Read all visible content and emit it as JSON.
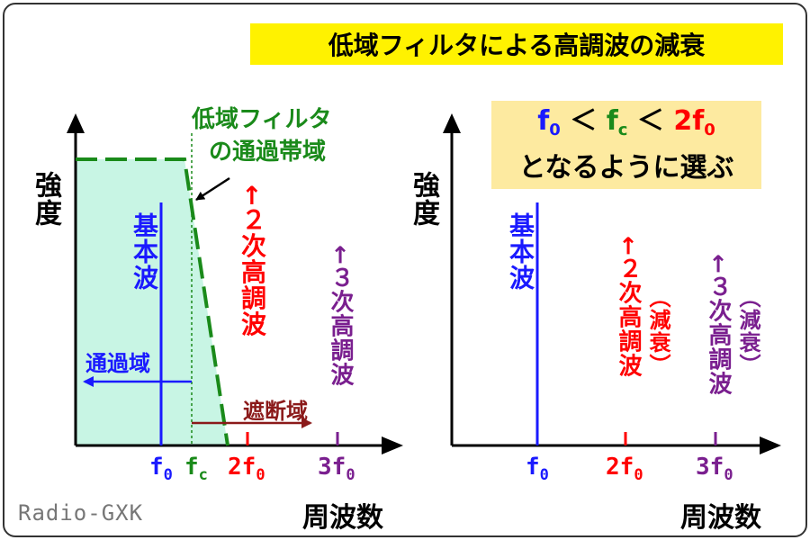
{
  "title": "低域フィルタによる高調波の減衰",
  "note": {
    "line1_f0": "f",
    "line1_f0_sub": "0",
    "line1_lt1": "＜",
    "line1_fc": "f",
    "line1_fc_sub": "c",
    "line1_lt2": "＜",
    "line1_2f0": "2f",
    "line1_2f0_sub": "0",
    "line2": "となるように選ぶ"
  },
  "left_chart": {
    "ylabel": "強度",
    "xlabel": "周波数",
    "filter_label_line1": "低域フィルタ",
    "filter_label_line2": "の通過帯域",
    "fundamental": "基本波",
    "second_harmonic": "←２次高調波",
    "third_harmonic": "←３次高調波",
    "passband": "通過域",
    "stopband": "遮断域",
    "ticks": {
      "f0": "f",
      "f0_sub": "0",
      "fc": "f",
      "fc_sub": "c",
      "f2": "2f",
      "f2_sub": "0",
      "f3": "3f",
      "f3_sub": "0"
    }
  },
  "right_chart": {
    "ylabel": "強度",
    "xlabel": "周波数",
    "fundamental": "基本波",
    "second_harmonic": "←２次高調波",
    "second_note": "（減衰）",
    "third_harmonic": "←３次高調波",
    "third_note": "（減衰）",
    "ticks": {
      "f0": "f",
      "f0_sub": "0",
      "f2": "2f",
      "f2_sub": "0",
      "f3": "3f",
      "f3_sub": "0"
    }
  },
  "watermark": "Radio-GXK",
  "colors": {
    "fundamental": "#1a1aff",
    "second": "#ff0000",
    "third": "#7a1f8f",
    "filter": "#1a8a1a",
    "passband_fill": "#c8f5e4",
    "stopband": "#8b1a1a",
    "title_bg": "#fff200",
    "note_bg": "#fdeaa0"
  }
}
